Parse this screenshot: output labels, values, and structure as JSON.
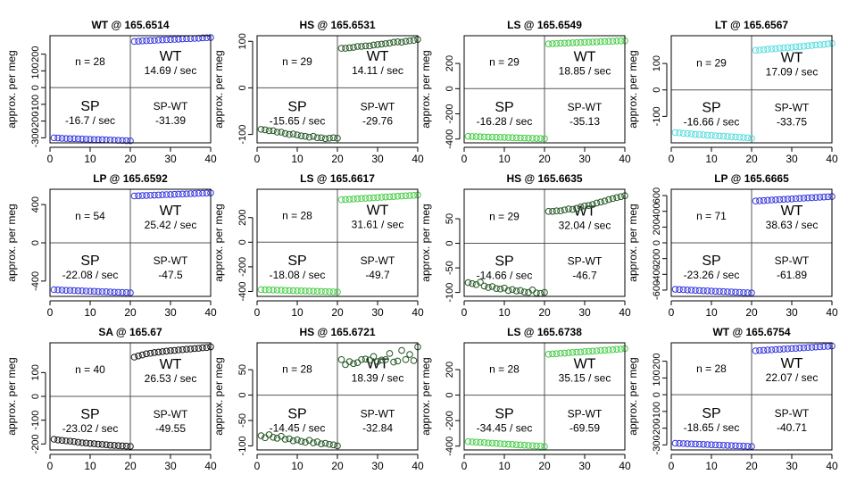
{
  "figure": {
    "ylabel": "approx. per meg",
    "x_ticks": [
      0,
      10,
      20,
      30,
      40
    ],
    "xlim": [
      0,
      40
    ],
    "split_x": 20
  },
  "chart_data": [
    {
      "type": "scatter",
      "title": "WT @ 165.6514",
      "color": "#3333dd",
      "ylim": [
        -330,
        310
      ],
      "y_ticks": [
        -300,
        -200,
        -100,
        0,
        100,
        200
      ],
      "n_label": "n = 28",
      "wt_label": "WT",
      "wt_rate": "14.69 / sec",
      "sp_label": "SP",
      "sp_rate": "-16.7 / sec",
      "diff_label": "SP-WT",
      "diff_value": "-31.39",
      "sp_y": [
        -300,
        -301,
        -303,
        -304,
        -305,
        -305,
        -306,
        -307,
        -308,
        -309,
        -310,
        -310,
        -311,
        -312,
        -313,
        -314,
        -315,
        -316,
        -317,
        -318
      ],
      "wt_y": [
        276,
        277,
        279,
        280,
        281,
        282,
        284,
        285,
        286,
        287,
        288,
        289,
        291,
        292,
        293,
        294,
        295,
        297,
        298,
        299
      ]
    },
    {
      "type": "scatter",
      "title": "HS @ 165.6531",
      "color": "#225522",
      "ylim": [
        -118,
        112
      ],
      "y_ticks": [
        -100,
        0,
        100
      ],
      "n_label": "n = 29",
      "wt_label": "WT",
      "wt_rate": "14.11 / sec",
      "sp_label": "SP",
      "sp_rate": "-15.65 / sec",
      "diff_label": "SP-WT",
      "diff_value": "-29.76",
      "sp_y": [
        -89,
        -90,
        -92,
        -92,
        -95,
        -95,
        -98,
        -100,
        -99,
        -101,
        -103,
        -104,
        -106,
        -104,
        -107,
        -107,
        -109,
        -108,
        -107,
        -108
      ],
      "wt_y": [
        85,
        85,
        86,
        87,
        89,
        89,
        90,
        90,
        92,
        93,
        94,
        95,
        96,
        98,
        99,
        98,
        100,
        101,
        102,
        104
      ]
    },
    {
      "type": "scatter",
      "title": "LS @ 165.6549",
      "color": "#44cc44",
      "ylim": [
        -430,
        420
      ],
      "y_ticks": [
        -400,
        -200,
        0,
        200
      ],
      "n_label": "n = 29",
      "wt_label": "WT",
      "wt_rate": "18.85 / sec",
      "sp_label": "SP",
      "sp_rate": "-16.28 / sec",
      "diff_label": "SP-WT",
      "diff_value": "-35.13",
      "sp_y": [
        -378,
        -380,
        -381,
        -382,
        -383,
        -384,
        -385,
        -386,
        -386,
        -387,
        -388,
        -389,
        -390,
        -391,
        -392,
        -393,
        -394,
        -395,
        -396,
        -397
      ],
      "wt_y": [
        355,
        357,
        358,
        360,
        361,
        362,
        364,
        365,
        366,
        368,
        369,
        370,
        371,
        373,
        374,
        375,
        376,
        378,
        379,
        380
      ]
    },
    {
      "type": "scatter",
      "title": "LT @ 165.6567",
      "color": "#55dddd",
      "ylim": [
        -200,
        205
      ],
      "y_ticks": [
        -100,
        0,
        100
      ],
      "n_label": "n = 29",
      "wt_label": "WT",
      "wt_rate": "17.09 / sec",
      "sp_label": "SP",
      "sp_rate": "-16.66 / sec",
      "diff_label": "SP-WT",
      "diff_value": "-33.75",
      "sp_y": [
        -161,
        -162,
        -164,
        -165,
        -166,
        -168,
        -169,
        -170,
        -171,
        -172,
        -173,
        -174,
        -175,
        -176,
        -177,
        -178,
        -179,
        -180,
        -181,
        -183
      ],
      "wt_y": [
        150,
        151,
        152,
        154,
        155,
        156,
        158,
        159,
        160,
        161,
        163,
        164,
        165,
        167,
        168,
        170,
        171,
        172,
        174,
        176
      ]
    },
    {
      "type": "scatter",
      "title": "LP @ 165.6592",
      "color": "#3333dd",
      "ylim": [
        -560,
        560
      ],
      "y_ticks": [
        -400,
        0,
        400
      ],
      "n_label": "n = 54",
      "wt_label": "WT",
      "wt_rate": "25.42 / sec",
      "sp_label": "SP",
      "sp_rate": "-22.08 / sec",
      "diff_label": "SP-WT",
      "diff_value": "-47.5",
      "sp_y": [
        -490,
        -492,
        -494,
        -496,
        -497,
        -499,
        -501,
        -502,
        -504,
        -506,
        -507,
        -509,
        -511,
        -512,
        -514,
        -516,
        -517,
        -519,
        -520,
        -522
      ],
      "wt_y": [
        490,
        492,
        494,
        495,
        497,
        499,
        500,
        502,
        504,
        505,
        507,
        509,
        510,
        512,
        514,
        515,
        517,
        518,
        520,
        522
      ]
    },
    {
      "type": "scatter",
      "title": "LS @ 165.6617",
      "color": "#44cc44",
      "ylim": [
        -440,
        430
      ],
      "y_ticks": [
        -400,
        -200,
        0,
        200
      ],
      "n_label": "n = 28",
      "wt_label": "WT",
      "wt_rate": "31.61 / sec",
      "sp_label": "SP",
      "sp_rate": "-18.08 / sec",
      "diff_label": "SP-WT",
      "diff_value": "-49.7",
      "sp_y": [
        -385,
        -386,
        -387,
        -388,
        -389,
        -390,
        -391,
        -392,
        -393,
        -394,
        -395,
        -396,
        -397,
        -398,
        -399,
        -400,
        -401,
        -402,
        -403,
        -404
      ],
      "wt_y": [
        345,
        347,
        349,
        351,
        353,
        355,
        357,
        359,
        361,
        363,
        365,
        367,
        369,
        371,
        373,
        375,
        377,
        379,
        381,
        384
      ]
    },
    {
      "type": "scatter",
      "title": "HS @ 165.6635",
      "color": "#225522",
      "ylim": [
        -108,
        110
      ],
      "y_ticks": [
        -100,
        -50,
        0,
        50
      ],
      "n_label": "n = 29",
      "wt_label": "WT",
      "wt_rate": "32.04 / sec",
      "sp_label": "SP",
      "sp_rate": "-14.66 / sec",
      "diff_label": "SP-WT",
      "diff_value": "-46.7",
      "sp_y": [
        -80,
        -82,
        -84,
        -79,
        -87,
        -90,
        -88,
        -92,
        -93,
        -91,
        -96,
        -94,
        -97,
        -96,
        -99,
        -100,
        -95,
        -101,
        -102,
        -100
      ],
      "wt_y": [
        65,
        65,
        66,
        66,
        68,
        70,
        69,
        71,
        74,
        76,
        77,
        79,
        82,
        84,
        86,
        89,
        91,
        93,
        95,
        97
      ]
    },
    {
      "type": "scatter",
      "title": "LP @ 165.6665",
      "color": "#3333dd",
      "ylim": [
        -680,
        680
      ],
      "y_ticks": [
        -600,
        -400,
        -200,
        0,
        200,
        400,
        600
      ],
      "n_label": "n = 71",
      "wt_label": "WT",
      "wt_rate": "38.63 / sec",
      "sp_label": "SP",
      "sp_rate": "-23.26 / sec",
      "diff_label": "SP-WT",
      "diff_value": "-61.89",
      "sp_y": [
        -590,
        -593,
        -595,
        -598,
        -600,
        -603,
        -605,
        -608,
        -610,
        -612,
        -615,
        -617,
        -620,
        -622,
        -624,
        -627,
        -629,
        -632,
        -634,
        -636
      ],
      "wt_y": [
        530,
        533,
        536,
        540,
        543,
        546,
        549,
        552,
        555,
        558,
        561,
        564,
        567,
        570,
        573,
        576,
        579,
        582,
        585,
        588
      ]
    },
    {
      "type": "scatter",
      "title": "SA @ 165.67",
      "color": "#111111",
      "ylim": [
        -225,
        225
      ],
      "y_ticks": [
        -200,
        -100,
        0,
        100
      ],
      "n_label": "n = 40",
      "wt_label": "WT",
      "wt_rate": "26.53 / sec",
      "sp_label": "SP",
      "sp_rate": "-23.02 / sec",
      "diff_label": "SP-WT",
      "diff_value": "-49.55",
      "sp_y": [
        -180,
        -183,
        -185,
        -187,
        -188,
        -190,
        -193,
        -195,
        -196,
        -198,
        -199,
        -201,
        -202,
        -203,
        -205,
        -206,
        -207,
        -208,
        -209,
        -210
      ],
      "wt_y": [
        165,
        170,
        174,
        179,
        181,
        184,
        186,
        188,
        190,
        192,
        193,
        195,
        196,
        198,
        199,
        201,
        202,
        204,
        205,
        208
      ]
    },
    {
      "type": "scatter",
      "title": "HS @ 165.6721",
      "color": "#225522",
      "ylim": [
        -108,
        103
      ],
      "y_ticks": [
        -100,
        -50,
        0,
        50
      ],
      "n_label": "n = 28",
      "wt_label": "WT",
      "wt_rate": "18.39 / sec",
      "sp_label": "SP",
      "sp_rate": "-14.45 / sec",
      "diff_label": "SP-WT",
      "diff_value": "-32.84",
      "sp_y": [
        -80,
        -84,
        -78,
        -83,
        -85,
        -81,
        -87,
        -86,
        -90,
        -88,
        -91,
        -93,
        -89,
        -94,
        -92,
        -96,
        -95,
        -97,
        -98,
        -100
      ],
      "wt_y": [
        70,
        60,
        66,
        62,
        64,
        70,
        71,
        69,
        76,
        66,
        69,
        70,
        82,
        65,
        67,
        88,
        70,
        80,
        68,
        95
      ]
    },
    {
      "type": "scatter",
      "title": "LS @ 165.6738",
      "color": "#44cc44",
      "ylim": [
        -430,
        410
      ],
      "y_ticks": [
        -400,
        -200,
        0,
        200
      ],
      "n_label": "n = 28",
      "wt_label": "WT",
      "wt_rate": "35.15 / sec",
      "sp_label": "SP",
      "sp_rate": "-34.45 / sec",
      "diff_label": "SP-WT",
      "diff_value": "-69.59",
      "sp_y": [
        -365,
        -367,
        -369,
        -371,
        -373,
        -375,
        -377,
        -379,
        -381,
        -383,
        -385,
        -387,
        -389,
        -391,
        -393,
        -395,
        -397,
        -399,
        -401,
        -403
      ],
      "wt_y": [
        320,
        323,
        325,
        327,
        329,
        332,
        334,
        336,
        338,
        341,
        343,
        345,
        347,
        350,
        352,
        354,
        356,
        359,
        361,
        365
      ]
    },
    {
      "type": "scatter",
      "title": "WT @ 165.6754",
      "color": "#3333dd",
      "ylim": [
        -330,
        310
      ],
      "y_ticks": [
        -300,
        -200,
        -100,
        0,
        100,
        200
      ],
      "n_label": "n = 28",
      "wt_label": "WT",
      "wt_rate": "22.07 / sec",
      "sp_label": "SP",
      "sp_rate": "-18.65 / sec",
      "diff_label": "SP-WT",
      "diff_value": "-40.71",
      "sp_y": [
        -290,
        -291,
        -292,
        -293,
        -294,
        -295,
        -296,
        -297,
        -298,
        -299,
        -300,
        -301,
        -302,
        -303,
        -304,
        -305,
        -306,
        -307,
        -308,
        -309
      ],
      "wt_y": [
        262,
        264,
        265,
        267,
        268,
        270,
        271,
        273,
        274,
        276,
        277,
        279,
        280,
        282,
        283,
        285,
        286,
        288,
        289,
        291
      ]
    }
  ]
}
